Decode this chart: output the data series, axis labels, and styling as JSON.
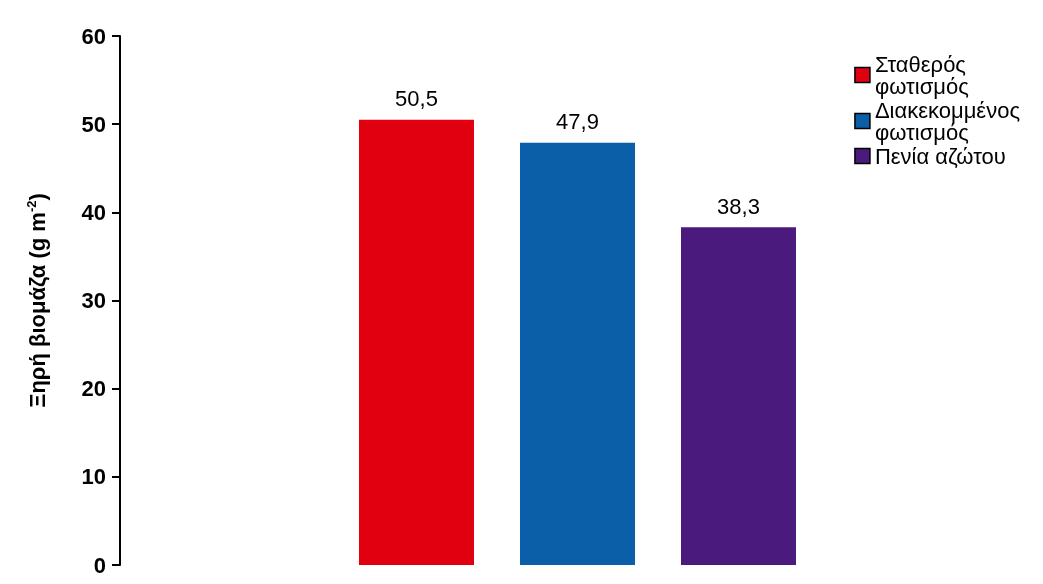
{
  "chart_data": {
    "type": "bar",
    "ylabel": "Ξηρή βιομάζα (g m$^{-2}$)",
    "categories": [
      null
    ],
    "ylim": [
      0,
      60
    ],
    "yticks": [
      0,
      10,
      20,
      30,
      40,
      50,
      60
    ],
    "grid": false,
    "legend": "top right",
    "series": [
      {
        "name": "Σταθερός φωτισμός",
        "color": "#e00010",
        "values": [
          50.5
        ],
        "value_labels": [
          "50,5"
        ]
      },
      {
        "name": "Διακεκομμένος φωτισμός",
        "color": "#0a5fa8",
        "values": [
          47.9
        ],
        "value_labels": [
          "47,9"
        ]
      },
      {
        "name": "Πενία αζώτου",
        "color": "#4a1a7c",
        "values": [
          38.3
        ],
        "value_labels": [
          "38,3"
        ]
      }
    ]
  }
}
